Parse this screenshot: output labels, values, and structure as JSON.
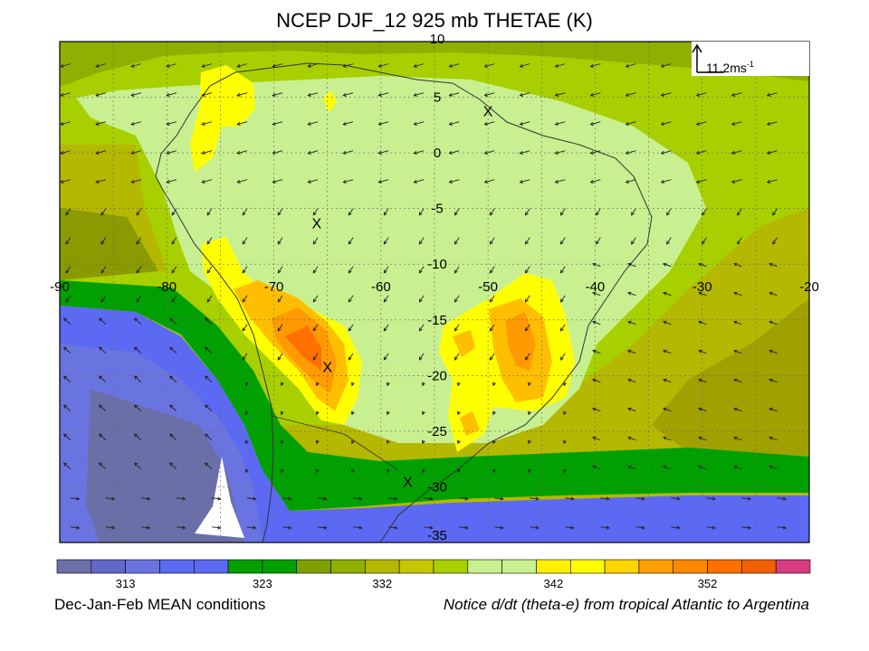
{
  "title": "NCEP DJF_12 925 mb THETAE (K)",
  "footer": {
    "left": "Dec-Jan-Feb MEAN conditions",
    "right": "Notice d/dt (theta-e) from tropical Atlantic to Argentina"
  },
  "reference_vector": {
    "label": "11.2ms",
    "exponent": "-1"
  },
  "longitude_labels": [
    "-90",
    "-80",
    "-70",
    "-60",
    "-50",
    "-40",
    "-30",
    "-20"
  ],
  "latitude_labels": [
    "10",
    "5",
    "0",
    "-5",
    "-10",
    "-15",
    "-20",
    "-25",
    "-30",
    "-35"
  ],
  "markers": [
    {
      "label": "X",
      "lon": -50,
      "lat": 3.8
    },
    {
      "label": "X",
      "lon": -66,
      "lat": -6.3
    },
    {
      "label": "X",
      "lon": -65,
      "lat": -19.2
    },
    {
      "label": "X",
      "lon": -57.5,
      "lat": -29.5
    }
  ],
  "colorbar": {
    "tick_labels": [
      "313",
      "323",
      "332",
      "342",
      "352"
    ],
    "colors": [
      "#6a6fa8",
      "#6168c8",
      "#6a74e0",
      "#5a6cf0",
      "#5c69f2",
      "#05a000",
      "#00a000",
      "#7fa000",
      "#8fb000",
      "#b5b800",
      "#c5c800",
      "#a8d000",
      "#c8f090",
      "#c8f090",
      "#fff000",
      "#ffff00",
      "#ffd400",
      "#ffa000",
      "#ff8800",
      "#ff7000",
      "#f06000",
      "#d83c80"
    ]
  },
  "colors": {
    "ocean_low": "#5c69f2",
    "dark_blue": "#6a6fa8",
    "green": "#00a000",
    "olive": "#b5b800",
    "yellow_green": "#a8d000",
    "light_green": "#c8f090",
    "yellow": "#ffff00",
    "orange": "#ffa000",
    "dark_orange": "#ff7000"
  }
}
